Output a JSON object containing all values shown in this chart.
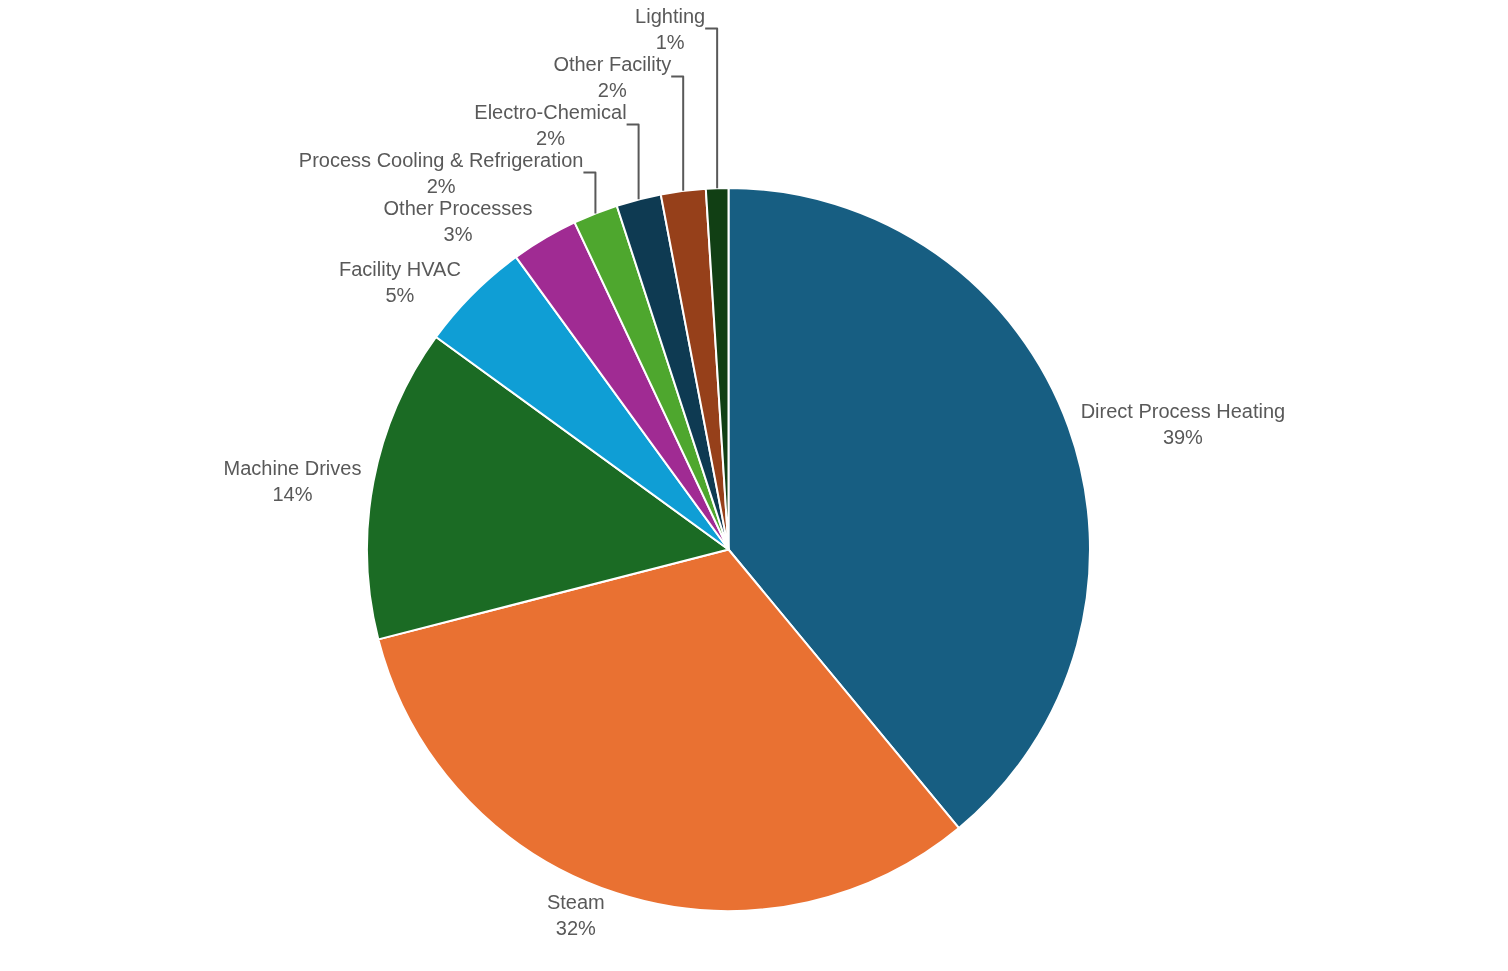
{
  "chart_data": {
    "type": "pie",
    "categories": [
      "Direct Process Heating",
      "Steam",
      "Machine Drives",
      "Facility HVAC",
      "Other Processes",
      "Process Cooling & Refrigeration",
      "Electro-Chemical",
      "Other Facility",
      "Lighting"
    ],
    "values": [
      39,
      32,
      14,
      5,
      3,
      2,
      2,
      2,
      1
    ],
    "value_labels": [
      "39%",
      "32%",
      "14%",
      "5%",
      "3%",
      "2%",
      "2%",
      "2%",
      "1%"
    ],
    "colors": [
      "#175e82",
      "#e97132",
      "#1b6b24",
      "#0f9ed5",
      "#a02b93",
      "#4ea72e",
      "#0e3a52",
      "#96401a",
      "#113f14"
    ],
    "legend": false
  }
}
